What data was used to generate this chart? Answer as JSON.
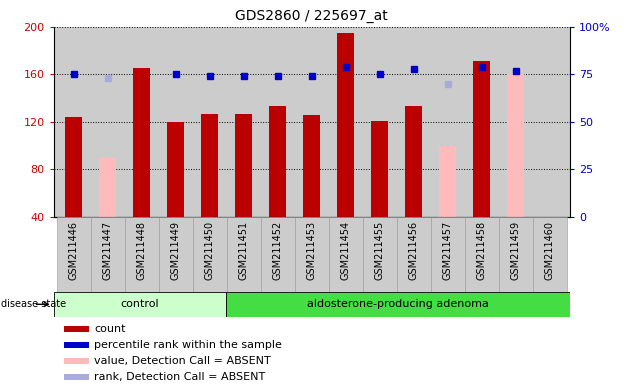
{
  "title": "GDS2860 / 225697_at",
  "samples": [
    "GSM211446",
    "GSM211447",
    "GSM211448",
    "GSM211449",
    "GSM211450",
    "GSM211451",
    "GSM211452",
    "GSM211453",
    "GSM211454",
    "GSM211455",
    "GSM211456",
    "GSM211457",
    "GSM211458",
    "GSM211459",
    "GSM211460"
  ],
  "bar_values": [
    124,
    null,
    165,
    120,
    127,
    127,
    133,
    126,
    195,
    121,
    133,
    null,
    171,
    null,
    null
  ],
  "bar_absent_values": [
    null,
    90,
    null,
    null,
    null,
    null,
    null,
    null,
    null,
    null,
    null,
    100,
    null,
    160,
    null
  ],
  "percentile_ranks": [
    75,
    null,
    null,
    75,
    74,
    74,
    74,
    74,
    79,
    75,
    78,
    null,
    79,
    77,
    null
  ],
  "percentile_absent_ranks": [
    null,
    73,
    null,
    null,
    null,
    null,
    null,
    null,
    null,
    null,
    null,
    70,
    null,
    null,
    null
  ],
  "bar_color": "#bb0000",
  "bar_absent_color": "#ffbbbb",
  "percentile_color": "#0000cc",
  "percentile_absent_color": "#aaaadd",
  "ylim_left": [
    40,
    200
  ],
  "ylim_right": [
    0,
    100
  ],
  "yticks_left": [
    40,
    80,
    120,
    160,
    200
  ],
  "yticks_right": [
    0,
    25,
    50,
    75,
    100
  ],
  "ctrl_count": 5,
  "group_label_ctrl": "control",
  "group_label_adeno": "aldosterone-producing adenoma",
  "group_color_ctrl": "#ccffcc",
  "group_color_adeno": "#44dd44",
  "label_band_bg": "#cccccc",
  "disease_label": "disease state",
  "legend_items": [
    {
      "label": "count",
      "color": "#bb0000"
    },
    {
      "label": "percentile rank within the sample",
      "color": "#0000cc"
    },
    {
      "label": "value, Detection Call = ABSENT",
      "color": "#ffbbbb"
    },
    {
      "label": "rank, Detection Call = ABSENT",
      "color": "#aaaadd"
    }
  ],
  "plot_bg": "#cccccc",
  "left_axis_color": "#cc0000",
  "right_axis_color": "#0000cc",
  "bar_width": 0.5
}
